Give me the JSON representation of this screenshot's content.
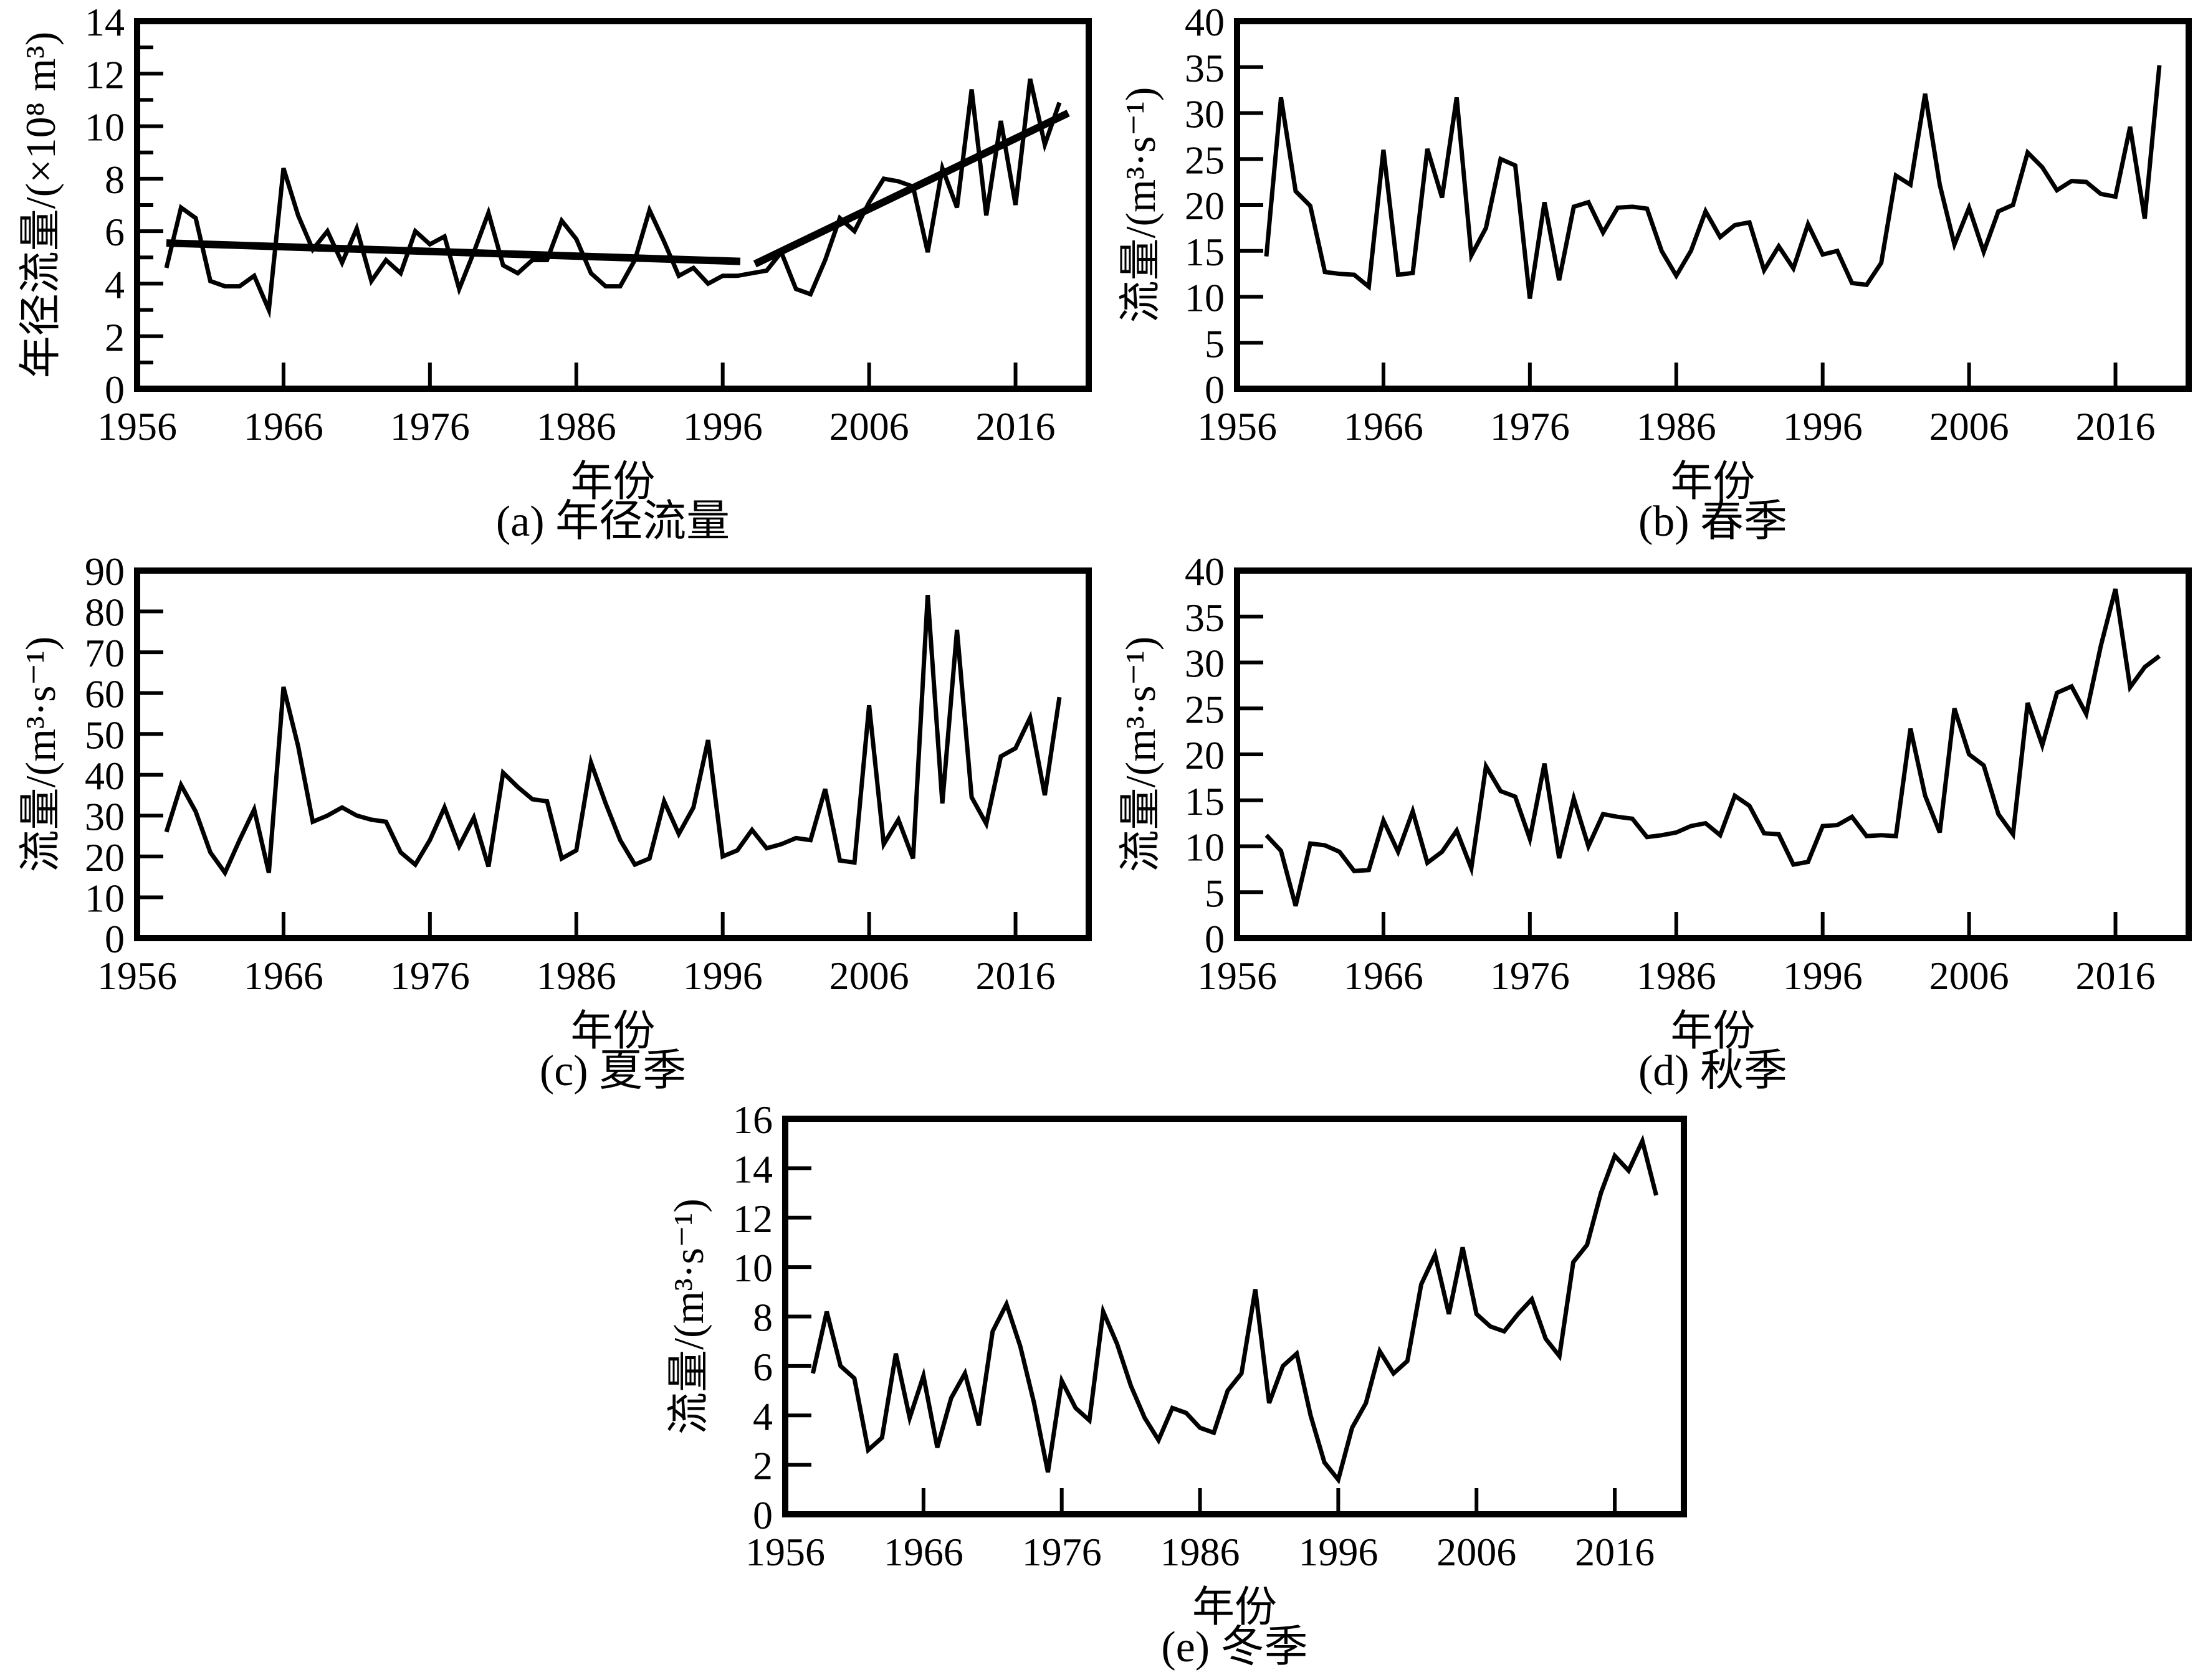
{
  "figure": {
    "background_color": "#ffffff",
    "line_color": "#000000",
    "x_axis_label": "年份",
    "x_ticks": [
      1956,
      1966,
      1976,
      1986,
      1996,
      2006,
      2016
    ],
    "x_range": [
      1956,
      2021
    ],
    "years": [
      1958,
      1959,
      1960,
      1961,
      1962,
      1963,
      1964,
      1965,
      1966,
      1967,
      1968,
      1969,
      1970,
      1971,
      1972,
      1973,
      1974,
      1975,
      1976,
      1977,
      1978,
      1979,
      1980,
      1981,
      1982,
      1983,
      1984,
      1985,
      1986,
      1987,
      1988,
      1989,
      1990,
      1991,
      1992,
      1993,
      1994,
      1995,
      1996,
      1997,
      1998,
      1999,
      2000,
      2001,
      2002,
      2003,
      2004,
      2005,
      2006,
      2007,
      2008,
      2009,
      2010,
      2011,
      2012,
      2013,
      2014,
      2015,
      2016,
      2017,
      2018,
      2019
    ]
  },
  "chart_data": [
    {
      "id": "a",
      "type": "line",
      "caption": "(a) 年径流量",
      "xlabel": "年份",
      "ylabel": "年径流量/(×10⁸ m³)",
      "ylim": [
        0,
        14
      ],
      "ytick_step": 2,
      "yminor_step": 1,
      "grid": false,
      "legend": "none",
      "values": [
        4.6,
        6.9,
        6.5,
        4.1,
        3.9,
        3.9,
        4.3,
        3.0,
        8.4,
        6.6,
        5.3,
        6.0,
        4.8,
        6.1,
        4.1,
        4.9,
        4.4,
        6.0,
        5.5,
        5.8,
        3.8,
        5.2,
        6.7,
        4.7,
        4.4,
        4.9,
        4.9,
        6.4,
        5.7,
        4.4,
        3.9,
        3.9,
        4.9,
        6.8,
        5.6,
        4.3,
        4.6,
        4.0,
        4.3,
        4.3,
        4.4,
        4.5,
        5.2,
        3.8,
        3.6,
        4.9,
        6.5,
        6.0,
        7.1,
        8.0,
        7.9,
        7.7,
        5.2,
        8.4,
        6.9,
        11.4,
        6.6,
        10.2,
        7.0,
        11.8,
        9.3,
        10.9
      ],
      "trend_segments": [
        {
          "x1": 1958,
          "y1": 5.55,
          "x2": 1997.2,
          "y2": 4.85
        },
        {
          "x1": 1998.2,
          "y1": 4.75,
          "x2": 2019.6,
          "y2": 10.5
        }
      ]
    },
    {
      "id": "b",
      "type": "line",
      "caption": "(b) 春季",
      "xlabel": "年份",
      "ylabel": "流量/(m³·s⁻¹)",
      "ylim": [
        0,
        40
      ],
      "ytick_step": 5,
      "yminor_step": 0,
      "grid": false,
      "legend": "none",
      "values": [
        14.4,
        31.7,
        21.5,
        19.9,
        12.7,
        12.5,
        12.4,
        11.1,
        26.0,
        12.4,
        12.6,
        26.1,
        20.8,
        31.7,
        14.5,
        17.5,
        25.0,
        24.3,
        9.8,
        20.3,
        11.8,
        19.8,
        20.3,
        17.0,
        19.7,
        19.8,
        19.6,
        15.0,
        12.3,
        15.0,
        19.3,
        16.5,
        17.8,
        18.1,
        12.9,
        15.5,
        13.1,
        17.9,
        14.6,
        15.0,
        11.5,
        11.3,
        13.7,
        23.2,
        22.2,
        32.1,
        22.2,
        15.7,
        19.7,
        14.9,
        19.3,
        20.0,
        25.7,
        24.1,
        21.6,
        22.6,
        22.5,
        21.2,
        20.9,
        28.5,
        18.5,
        35.2
      ],
      "trend_segments": []
    },
    {
      "id": "c",
      "type": "line",
      "caption": "(c) 夏季",
      "xlabel": "年份",
      "ylabel": "流量/(m³·s⁻¹)",
      "ylim": [
        0,
        90
      ],
      "ytick_step": 10,
      "yminor_step": 0,
      "grid": false,
      "legend": "none",
      "values": [
        26,
        37.5,
        31,
        21,
        16,
        24,
        31.5,
        16,
        61.5,
        47,
        28.5,
        30,
        32,
        30,
        29,
        28.5,
        21,
        18,
        24,
        32,
        22.5,
        29.5,
        17.5,
        40.5,
        37,
        34,
        33.5,
        19.5,
        21.5,
        43,
        33,
        24,
        18,
        19.5,
        33.5,
        25.5,
        32,
        48.5,
        20,
        21.5,
        26.5,
        22,
        23,
        24.5,
        24,
        36.5,
        19,
        18.5,
        57,
        23,
        29,
        19.5,
        84,
        33,
        75.5,
        34.5,
        28,
        44.5,
        46.5,
        54,
        35,
        59
      ],
      "trend_segments": []
    },
    {
      "id": "d",
      "type": "line",
      "caption": "(d) 秋季",
      "xlabel": "年份",
      "ylabel": "流量/(m³·s⁻¹)",
      "ylim": [
        0,
        40
      ],
      "ytick_step": 5,
      "yminor_step": 0,
      "grid": false,
      "legend": "none",
      "values": [
        11.2,
        9.5,
        3.5,
        10.3,
        10.1,
        9.4,
        7.3,
        7.4,
        12.8,
        9.4,
        13.8,
        8.2,
        9.4,
        11.7,
        7.6,
        18.7,
        16.0,
        15.4,
        10.8,
        19.0,
        8.7,
        15.2,
        10.0,
        13.5,
        13.2,
        13.0,
        11.0,
        11.2,
        11.5,
        12.2,
        12.5,
        11.2,
        15.5,
        14.4,
        11.4,
        11.3,
        8.0,
        8.3,
        12.2,
        12.3,
        13.2,
        11.1,
        11.2,
        11.1,
        22.8,
        15.5,
        11.5,
        25.0,
        20.0,
        18.8,
        13.5,
        11.3,
        25.6,
        21.0,
        26.7,
        27.4,
        24.4,
        31.8,
        38.0,
        27.3,
        29.5,
        30.7
      ],
      "trend_segments": []
    },
    {
      "id": "e",
      "type": "line",
      "caption": "(e) 冬季",
      "xlabel": "年份",
      "ylabel": "流量/(m³·s⁻¹)",
      "ylim": [
        0,
        16
      ],
      "ytick_step": 2,
      "yminor_step": 0,
      "grid": false,
      "legend": "none",
      "values": [
        5.7,
        8.2,
        6.0,
        5.5,
        2.6,
        3.1,
        6.5,
        3.9,
        5.6,
        2.7,
        4.7,
        5.7,
        3.6,
        7.4,
        8.5,
        6.8,
        4.5,
        1.7,
        5.4,
        4.3,
        3.8,
        8.2,
        6.9,
        5.2,
        3.9,
        3.0,
        4.3,
        4.1,
        3.5,
        3.3,
        5.0,
        5.7,
        9.1,
        4.5,
        6.0,
        6.5,
        4.0,
        2.1,
        1.4,
        3.5,
        4.5,
        6.6,
        5.7,
        6.2,
        9.3,
        10.5,
        8.1,
        10.8,
        8.1,
        7.6,
        7.4,
        8.1,
        8.7,
        7.1,
        6.4,
        10.2,
        10.9,
        13.0,
        14.5,
        13.9,
        15.1,
        12.9
      ],
      "trend_segments": []
    }
  ]
}
